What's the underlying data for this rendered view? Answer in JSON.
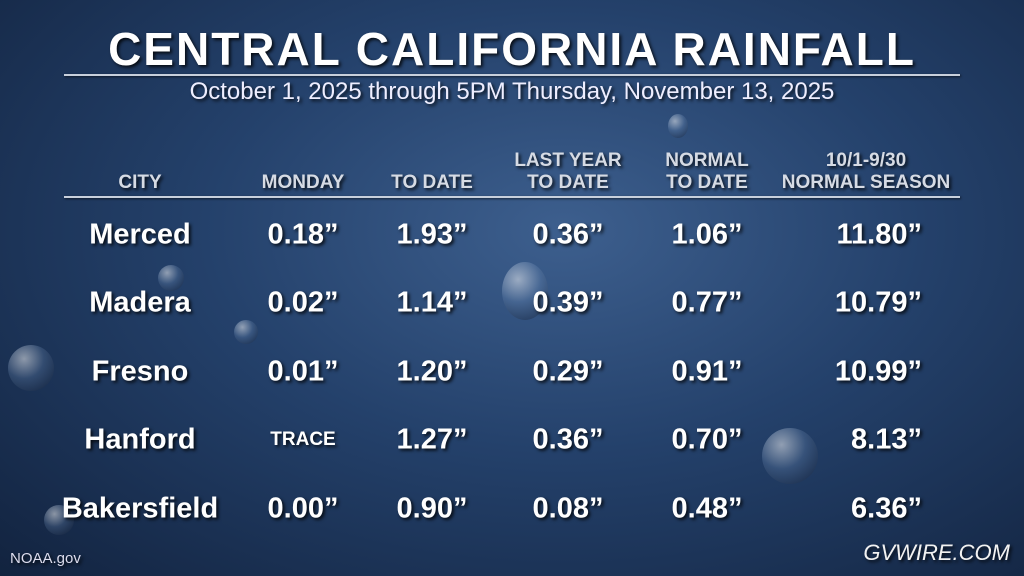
{
  "header": {
    "title": "CENTRAL CALIFORNIA RAINFALL",
    "subtitle": "October 1, 2025 through 5PM Thursday, November 13, 2025"
  },
  "table": {
    "columns": [
      [
        "CITY"
      ],
      [
        "MONDAY"
      ],
      [
        "TO DATE"
      ],
      [
        "LAST YEAR",
        "TO DATE"
      ],
      [
        "NORMAL",
        "TO DATE"
      ],
      [
        "10/1-9/30",
        "NORMAL SEASON"
      ]
    ],
    "rows": [
      [
        "Merced",
        "0.18”",
        "1.93”",
        "0.36”",
        "1.06”",
        "11.80”"
      ],
      [
        "Madera",
        "0.02”",
        "1.14”",
        "0.39”",
        "0.77”",
        "10.79”"
      ],
      [
        "Fresno",
        "0.01”",
        "1.20”",
        "0.29”",
        "0.91”",
        "10.99”"
      ],
      [
        "Hanford",
        "TRACE",
        "1.27”",
        "0.36”",
        "0.70”",
        "8.13”"
      ],
      [
        "Bakersfield",
        "0.00”",
        "0.90”",
        "0.08”",
        "0.48”",
        "6.36”"
      ]
    ]
  },
  "footer": {
    "source": "NOAA.gov",
    "logo": "GVWIRE.COM"
  }
}
